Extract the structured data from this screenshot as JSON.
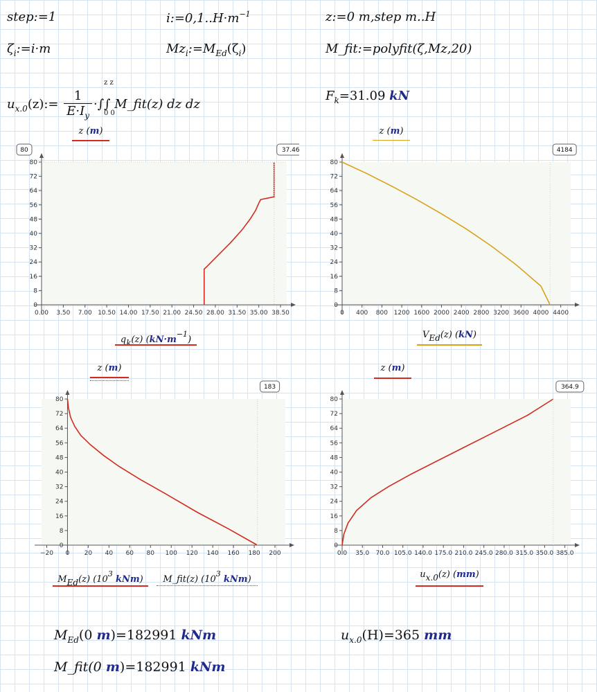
{
  "definitions": {
    "step_def": "step:=1",
    "i_def": "i:=0,1..H·m",
    "i_def_sup": "−1",
    "z_def": "z:=0 m,step m..H",
    "zeta_def": "ζ",
    "zeta_sub": "i",
    "zeta_rhs": ":=i·m",
    "mz_lhs": "Mz",
    "mz_sub": "i",
    "mz_rhs": ":=M",
    "mz_rhs_sub": "Ed",
    "mz_arg": "(ζ",
    "mz_arg_sub": "i",
    "mz_arg_close": ")",
    "mfit_def": "M_fit:=polyfit(ζ,Mz,20)",
    "ux_lhs": "u",
    "ux_sub": "x.0",
    "ux_arg": "(z):=",
    "ux_num": "1",
    "ux_den": "E·I",
    "ux_den_sub": "y",
    "ux_integral": "·∫∫ M_fit(z) dz dz",
    "ux_limits_low": "0   0",
    "ux_limits_high": "z   z",
    "fk_lhs": "F",
    "fk_sub": "k",
    "fk_val": "=31.09",
    "fk_unit": "kN"
  },
  "chart_data": [
    {
      "type": "line",
      "ylabel": "z (m)",
      "xlabel": "q_k(z) (kN·m^-1)",
      "xlabel_main": "q",
      "xlabel_sub": "k",
      "xlabel_rest": "(z)  (",
      "xlabel_unit": "kN·m",
      "xlabel_sup": "−1",
      "xlabel_close": ")",
      "ylabel_var": "z",
      "ylabel_unit": "m",
      "xlim": [
        0,
        39.5
      ],
      "ylim": [
        0,
        80
      ],
      "xticks": [
        "0.00",
        "3.50",
        "7.00",
        "10.50",
        "14.00",
        "17.50",
        "21.00",
        "24.50",
        "28.00",
        "31.50",
        "35.00",
        "38.50"
      ],
      "yticks": [
        "0",
        "8",
        "16",
        "24",
        "32",
        "40",
        "48",
        "56",
        "64",
        "72",
        "80"
      ],
      "badge_y": "80",
      "badge_x": "37.46",
      "color": "#d42a1f",
      "series": [
        {
          "x": [
            26.2,
            26.2,
            26.8,
            28.5,
            30.5,
            32.3,
            33.6,
            34.5,
            35.0,
            35.3,
            37.4,
            37.46,
            37.46
          ],
          "y": [
            0,
            20,
            22,
            28,
            35,
            42,
            48,
            53,
            57,
            59,
            60.5,
            60.5,
            80
          ]
        }
      ]
    },
    {
      "type": "line",
      "ylabel": "z (m)",
      "xlabel": "V_Ed(z) (kN)",
      "xlabel_main": "V",
      "xlabel_sub": "Ed",
      "xlabel_rest": "(z)  (",
      "xlabel_unit": "kN",
      "xlabel_close": ")",
      "ylabel_var": "z",
      "ylabel_unit": "m",
      "xlim": [
        0,
        4600
      ],
      "ylim": [
        0,
        80
      ],
      "xticks": [
        "0",
        "400",
        "800",
        "1200",
        "1600",
        "2000",
        "2400",
        "2800",
        "3200",
        "3600",
        "4000",
        "4400"
      ],
      "yticks": [
        "0",
        "8",
        "16",
        "24",
        "32",
        "40",
        "48",
        "56",
        "64",
        "72",
        "80"
      ],
      "badge_x": "4184",
      "color": "#d8a21a",
      "series": [
        {
          "x": [
            0,
            500,
            1000,
            1500,
            2000,
            2500,
            3000,
            3500,
            4000,
            4184
          ],
          "y": [
            80,
            73.5,
            66.5,
            59,
            51,
            42.5,
            33,
            22.5,
            10.5,
            0
          ]
        }
      ]
    },
    {
      "type": "line",
      "ylabel": "z (m)",
      "xlabel": "M_Ed(z) (10^3 kNm)   M_fit(z) (10^3 kNm)",
      "xlabel_main": "M",
      "xlabel_sub": "Ed",
      "xlabel_rest": "(z)  (10",
      "xlabel_sup": "3",
      "xlabel_unit": "kNm",
      "xlabel_close": ")",
      "xlabel2": "M_fit(z)  (10",
      "xlabel2_sup": "3",
      "xlabel2_unit": "kNm",
      "xlabel2_close": ")",
      "ylabel_var": "z",
      "ylabel_unit": "m",
      "xlim": [
        -25,
        210
      ],
      "ylim": [
        0,
        80
      ],
      "xticks": [
        "−20",
        "0",
        "20",
        "40",
        "60",
        "80",
        "100",
        "120",
        "140",
        "160",
        "180",
        "200"
      ],
      "yticks": [
        "0",
        "8",
        "16",
        "24",
        "32",
        "40",
        "48",
        "56",
        "64",
        "72",
        "80"
      ],
      "badge_x": "183",
      "color": "#d42a1f",
      "series": [
        {
          "x": [
            0,
            1,
            3,
            7,
            13,
            22,
            35,
            50,
            70,
            95,
            125,
            155,
            183
          ],
          "y": [
            80,
            75,
            70,
            65,
            60,
            55,
            49,
            43,
            36,
            28,
            18,
            9,
            0
          ]
        }
      ]
    },
    {
      "type": "line",
      "ylabel": "z (m)",
      "xlabel": "u_x.0(z) (mm)",
      "xlabel_main": "u",
      "xlabel_sub": "x.0",
      "xlabel_rest": "(z)  (",
      "xlabel_unit": "mm",
      "xlabel_close": ")",
      "ylabel_var": "z",
      "ylabel_unit": "m",
      "xlim": [
        0,
        395
      ],
      "ylim": [
        0,
        80
      ],
      "xticks": [
        "0.0",
        "35.0",
        "70.0",
        "105.0",
        "140.0",
        "175.0",
        "210.0",
        "245.0",
        "280.0",
        "315.0",
        "350.0",
        "385.0"
      ],
      "yticks": [
        "0",
        "8",
        "16",
        "24",
        "32",
        "40",
        "48",
        "56",
        "64",
        "72",
        "80"
      ],
      "badge_x": "364.9",
      "color": "#d42a1f",
      "series": [
        {
          "x": [
            0,
            3,
            10,
            25,
            50,
            80,
            120,
            170,
            220,
            270,
            320,
            364.9
          ],
          "y": [
            0,
            6,
            12,
            19,
            26,
            32,
            39,
            47,
            55,
            63,
            71,
            80
          ]
        }
      ]
    }
  ],
  "results": {
    "med_lhs": "M",
    "med_sub": "Ed",
    "med_arg": "(0",
    "med_arg_unit": "m",
    "med_val": ")=182991",
    "med_unit": "kNm",
    "mfit_lhs": "M_fit(0",
    "mfit_arg_unit": "m",
    "mfit_val": ")=182991",
    "mfit_unit": "kNm",
    "ux_lhs": "u",
    "ux_sub": "x.0",
    "ux_arg": "(H)=365",
    "ux_unit": "mm"
  }
}
